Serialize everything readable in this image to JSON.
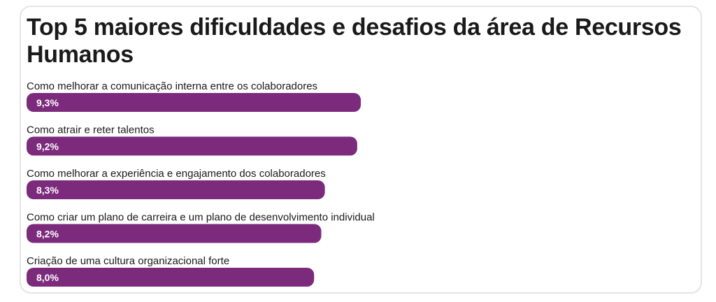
{
  "chart_data": {
    "type": "bar",
    "orientation": "horizontal",
    "title": "Top 5 maiores dificuldades e desafios da área de Recursos Humanos",
    "categories": [
      "Como melhorar a comunicação interna entre os colaboradores",
      "Como atrair e reter talentos",
      "Como melhorar a experiência e engajamento dos colaboradores",
      "Como criar um plano de carreira e um plano de desenvolvimento individual",
      "Criação de uma cultura organizacional forte"
    ],
    "values": [
      9.3,
      9.2,
      8.3,
      8.2,
      8.0
    ],
    "value_labels": [
      "9,3%",
      "9,2%",
      "8,3%",
      "8,2%",
      "8,0%"
    ],
    "unit": "%",
    "bar_color": "#7b2a7c",
    "grid": false,
    "legend": "none"
  }
}
